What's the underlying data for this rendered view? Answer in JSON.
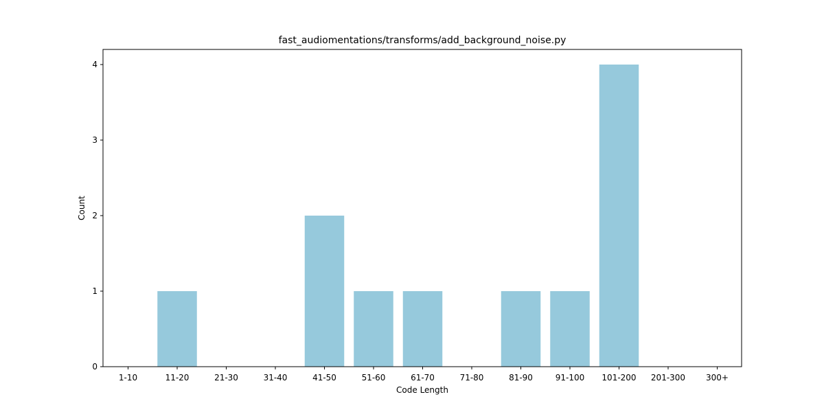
{
  "chart_data": {
    "type": "bar",
    "title": "fast_audiomentations/transforms/add_background_noise.py",
    "xlabel": "Code Length",
    "ylabel": "Count",
    "categories": [
      "1-10",
      "11-20",
      "21-30",
      "31-40",
      "41-50",
      "51-60",
      "61-70",
      "71-80",
      "81-90",
      "91-100",
      "101-200",
      "201-300",
      "300+"
    ],
    "values": [
      0,
      1,
      0,
      0,
      2,
      1,
      1,
      0,
      1,
      1,
      4,
      0,
      0
    ],
    "yticks": [
      0,
      1,
      2,
      3,
      4
    ],
    "ylim": [
      0,
      4.2
    ],
    "bar_color": "#96c9dc",
    "grid": false,
    "legend": "none"
  }
}
